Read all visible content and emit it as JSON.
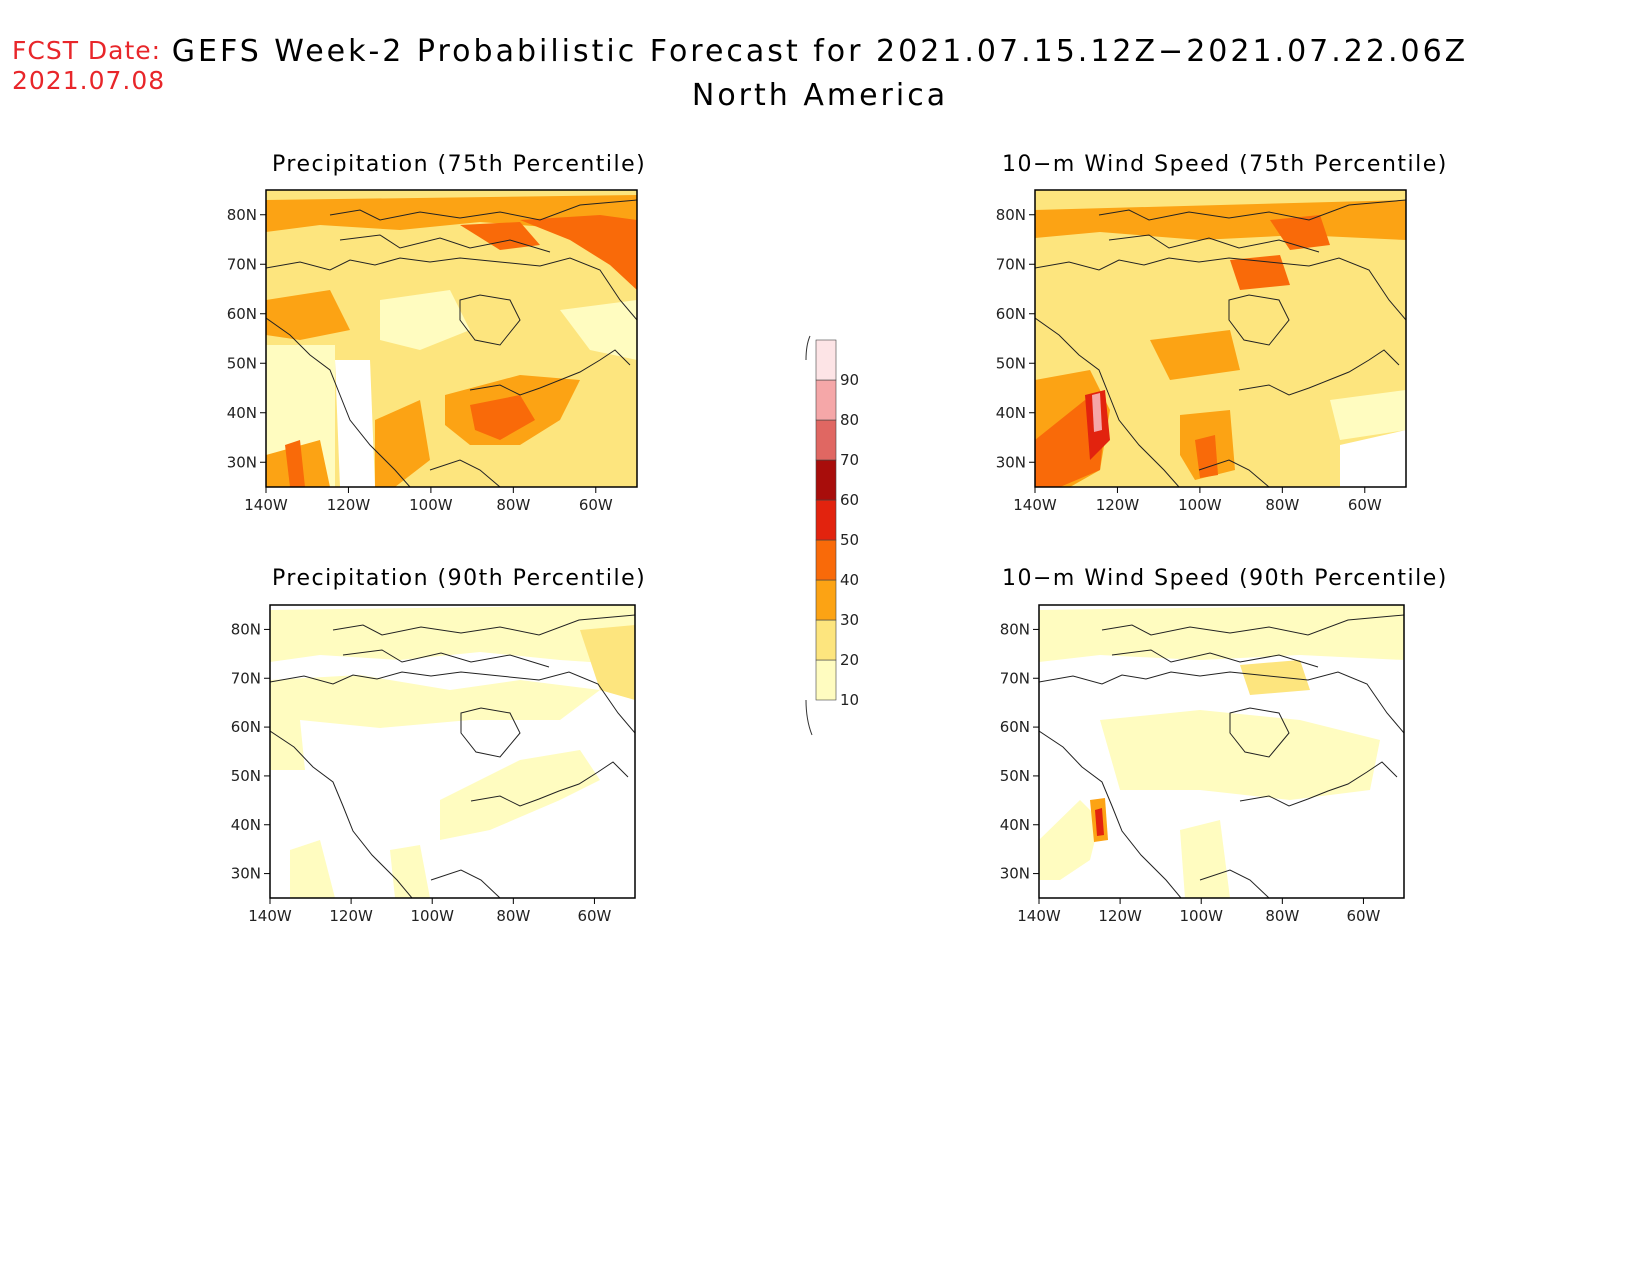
{
  "header": {
    "fcst_label": "FCST Date:",
    "fcst_date": "2021.07.08",
    "title": "GEFS Week-2 Probabilistic Forecast for 2021.07.15.12Z−2021.07.22.06Z",
    "subtitle": "North America"
  },
  "colorbar": {
    "labels": [
      "10",
      "20",
      "30",
      "40",
      "50",
      "60",
      "70",
      "80",
      "90"
    ],
    "colors": [
      "#fffcc0",
      "#fde57e",
      "#fca314",
      "#f96a09",
      "#e2230e",
      "#a80d0b",
      "#e06762",
      "#f5a7a8",
      "#fde4e6"
    ]
  },
  "axes": {
    "lat_labels": [
      "80N",
      "70N",
      "60N",
      "50N",
      "40N",
      "30N"
    ],
    "lon_labels": [
      "140W",
      "120W",
      "100W",
      "80W",
      "60W"
    ]
  },
  "panels": [
    {
      "title": "Precipitation (75th Percentile)",
      "base_color": "#fde57e"
    },
    {
      "title": "10−m Wind Speed (75th Percentile)",
      "base_color": "#fde57e"
    },
    {
      "title": "Precipitation (90th Percentile)",
      "base_color": "#ffffff"
    },
    {
      "title": "10−m Wind Speed (90th Percentile)",
      "base_color": "#ffffff"
    }
  ]
}
